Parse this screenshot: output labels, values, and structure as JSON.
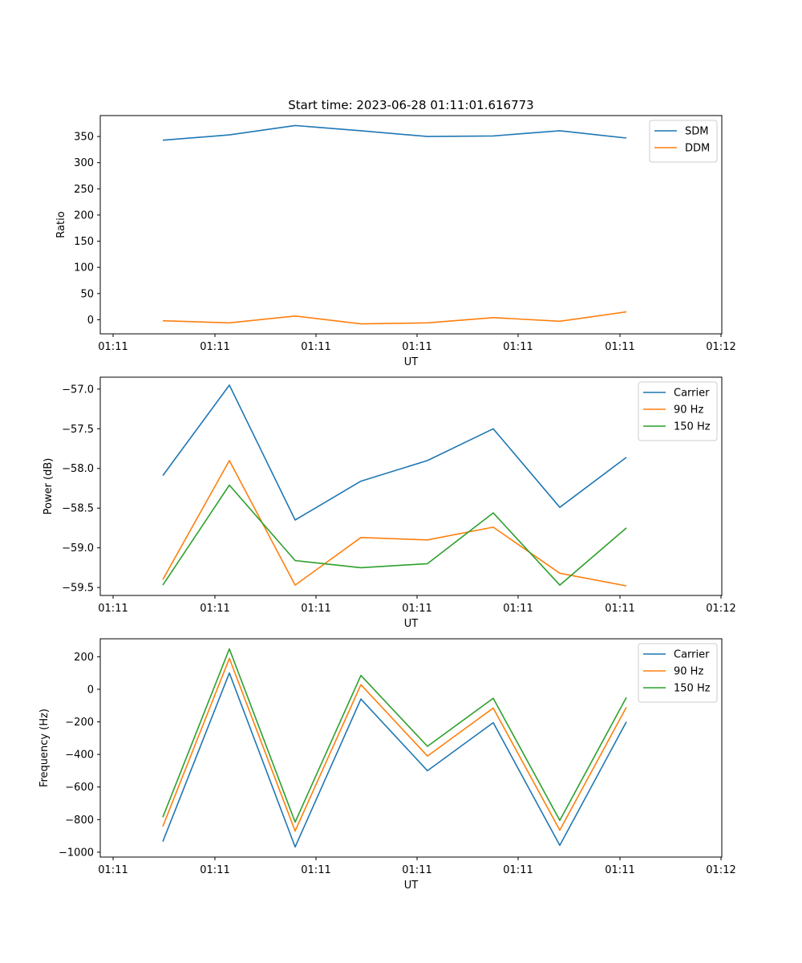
{
  "chart_data": [
    {
      "type": "line",
      "title": "Start time: 2023-06-28 01:11:01.616773",
      "xlabel": "UT",
      "ylabel": "Ratio",
      "x_ticks": [
        "01:11",
        "01:11",
        "01:11",
        "01:11",
        "01:11",
        "01:11",
        "01:12"
      ],
      "y_ticks": [
        0,
        50,
        100,
        150,
        200,
        250,
        300,
        350
      ],
      "ylim": [
        -27,
        390
      ],
      "grid": false,
      "legend": "top-right",
      "series": [
        {
          "name": "SDM",
          "color": "#1f77b4",
          "values": [
            343,
            353,
            371,
            361,
            350,
            351,
            361,
            347
          ]
        },
        {
          "name": "DDM",
          "color": "#ff7f0e",
          "values": [
            -2,
            -6,
            7,
            -8,
            -6,
            4,
            -3,
            15
          ]
        }
      ]
    },
    {
      "type": "line",
      "title": "",
      "xlabel": "UT",
      "ylabel": "Power (dB)",
      "x_ticks": [
        "01:11",
        "01:11",
        "01:11",
        "01:11",
        "01:11",
        "01:11",
        "01:12"
      ],
      "y_ticks": [
        "−59.5",
        "−59.0",
        "−58.5",
        "−58.0",
        "−57.5",
        "−57.0"
      ],
      "ylim": [
        -59.6,
        -56.85
      ],
      "grid": false,
      "legend": "top-right",
      "series": [
        {
          "name": "Carrier",
          "color": "#1f77b4",
          "values": [
            -58.09,
            -56.95,
            -58.65,
            -58.16,
            -57.9,
            -57.5,
            -58.49,
            -57.86
          ]
        },
        {
          "name": "90 Hz",
          "color": "#ff7f0e",
          "values": [
            -59.4,
            -57.9,
            -59.47,
            -58.87,
            -58.9,
            -58.74,
            -59.32,
            -59.48
          ]
        },
        {
          "name": "150 Hz",
          "color": "#2ca02c",
          "values": [
            -59.47,
            -58.21,
            -59.16,
            -59.25,
            -59.2,
            -58.56,
            -59.47,
            -58.75
          ]
        }
      ]
    },
    {
      "type": "line",
      "title": "",
      "xlabel": "UT",
      "ylabel": "Frequency (Hz)",
      "x_ticks": [
        "01:11",
        "01:11",
        "01:11",
        "01:11",
        "01:11",
        "01:11",
        "01:12"
      ],
      "y_ticks": [
        "−1000",
        "−800",
        "−600",
        "−400",
        "−200",
        "0",
        "200"
      ],
      "ylim": [
        -1030,
        310
      ],
      "grid": false,
      "legend": "top-right",
      "series": [
        {
          "name": "Carrier",
          "color": "#1f77b4",
          "values": [
            -935,
            100,
            -968,
            -60,
            -500,
            -205,
            -958,
            -200
          ]
        },
        {
          "name": "90 Hz",
          "color": "#ff7f0e",
          "values": [
            -842,
            190,
            -870,
            28,
            -410,
            -115,
            -865,
            -110
          ]
        },
        {
          "name": "150 Hz",
          "color": "#2ca02c",
          "values": [
            -785,
            248,
            -815,
            85,
            -350,
            -55,
            -805,
            -50
          ]
        }
      ]
    }
  ]
}
